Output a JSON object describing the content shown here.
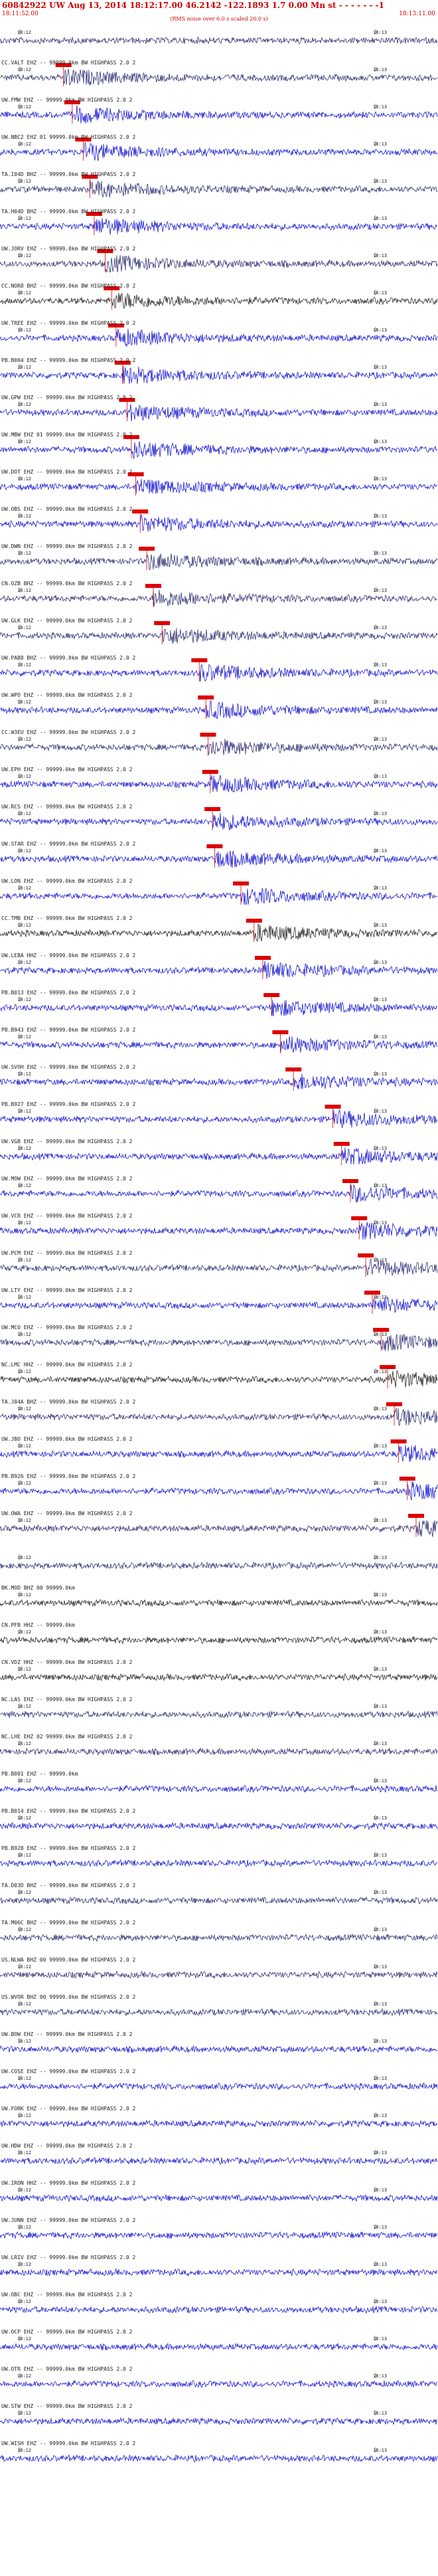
{
  "header": {
    "title": "60842922 UW Aug 13, 2014 18:12:17.00   46.2142  -122.1893  1.7 0.00 Mn st - - - - - - -1",
    "start_time": "18:11:52.00",
    "note": "(RMS noise over 6.0 s scaled 20.0 s)",
    "end_time": "18:13:11.00"
  },
  "colors": {
    "header_red": "#cc0000",
    "pick_red": "#dd0000",
    "trace_blue": "#0000cc",
    "trace_navy": "#1a1a66",
    "trace_black": "#111111",
    "label_dark": "#202020"
  },
  "tick_labels": {
    "left": "18:12",
    "right": "18:13"
  },
  "traces": [
    {
      "label": "",
      "color": "navy",
      "pick": null
    },
    {
      "label": "CC.VALT EHZ -- 99999.0km BW  HIGHPASS  2.0  2",
      "color": "navy",
      "pick": 0.145
    },
    {
      "label": "UW.FMW EHZ -- 99999.0km BW  HIGHPASS  2.0  2",
      "color": "blue",
      "pick": 0.165
    },
    {
      "label": "UW.NBC2 EHZ 01 99999.0km BW  HIGHPASS  2.0  2",
      "color": "blue",
      "pick": 0.19
    },
    {
      "label": "TA.I04D BHZ -- 99999.0km BW  HIGHPASS  2.0  2",
      "color": "navy",
      "pick": 0.205
    },
    {
      "label": "TA.H04D BHZ -- 99999.0km BW  HIGHPASS  2.0  2",
      "color": "blue",
      "pick": 0.215
    },
    {
      "label": "UW.JORV EHZ -- 99999.0km BW  HIGHPASS  2.0  2",
      "color": "navy",
      "pick": 0.24
    },
    {
      "label": "CC.NOR8 BHZ -- 99999.0km BW  HIGHPASS  2.0  2",
      "color": "black",
      "pick": 0.255
    },
    {
      "label": "UW.TREE EHZ -- 99999.0km BW  HIGHPASS  2.0  2",
      "color": "blue",
      "pick": 0.265
    },
    {
      "label": "PB.B004 EHZ -- 99999.0km BW  HIGHPASS  2.0  2",
      "color": "blue",
      "pick": 0.28
    },
    {
      "label": "UW.GPW EHZ -- 99999.0km BW  HIGHPASS  2.0  2",
      "color": "blue",
      "pick": 0.29
    },
    {
      "label": "UW.MBW EHZ 01 99999.0km BW  HIGHPASS  2.0  2",
      "color": "blue",
      "pick": 0.3
    },
    {
      "label": "UW.DOT EHZ -- 99999.0km BW  HIGHPASS  2.0  2",
      "color": "blue",
      "pick": 0.31
    },
    {
      "label": "UW.OBS EHZ -- 99999.0km BW  HIGHPASS  2.0  2",
      "color": "blue",
      "pick": 0.32
    },
    {
      "label": "UW.DWN EHZ -- 99999.0km BW  HIGHPASS  2.0  2",
      "color": "navy",
      "pick": 0.335
    },
    {
      "label": "CN.OZB BHZ -- 99999.0km BW  HIGHPASS  2.0  2",
      "color": "navy",
      "pick": 0.35
    },
    {
      "label": "UW.GLK EHZ -- 99999.0km BW  HIGHPASS  2.0  2",
      "color": "navy",
      "pick": 0.37
    },
    {
      "label": "UW.PAB8 BHZ -- 99999.0km BW  HIGHPASS  2.0  2",
      "color": "blue",
      "pick": 0.455
    },
    {
      "label": "UW.WPO EHZ -- 99999.0km BW  HIGHPASS  2.0  2",
      "color": "blue",
      "pick": 0.47
    },
    {
      "label": "CC.W3EU EHZ -- 99999.0km BW  HIGHPASS  2.0  2",
      "color": "navy",
      "pick": 0.475
    },
    {
      "label": "UW.EPH EHZ -- 99999.0km BW  HIGHPASS  2.0  2",
      "color": "blue",
      "pick": 0.48
    },
    {
      "label": "UW.RCS EHZ -- 99999.0km BW  HIGHPASS  2.0  2",
      "color": "blue",
      "pick": 0.485
    },
    {
      "label": "UW.STAR EHZ -- 99999.0km BW  HIGHPASS  2.0  2",
      "color": "blue",
      "pick": 0.49
    },
    {
      "label": "UW.LON EHZ -- 99999.0km BW  HIGHPASS  2.0  2",
      "color": "blue",
      "pick": 0.55
    },
    {
      "label": "CC.TMB EHZ -- 99999.0km BW  HIGHPASS  2.0  2",
      "color": "black",
      "pick": 0.58
    },
    {
      "label": "UW.LEBA HHZ -- 99999.0km BW  HIGHPASS  2.0  2",
      "color": "blue",
      "pick": 0.6
    },
    {
      "label": "PB.B013 EHZ -- 99999.0km BW  HIGHPASS  2.0  2",
      "color": "blue",
      "pick": 0.62
    },
    {
      "label": "PB.B943 EHZ -- 99999.0km BW  HIGHPASS  2.0  2",
      "color": "blue",
      "pick": 0.64
    },
    {
      "label": "UW.SVOH EHZ -- 99999.0km BW  HIGHPASS  2.0  2",
      "color": "blue",
      "pick": 0.67
    },
    {
      "label": "PB.B927 EHZ -- 99999.0km BW  HIGHPASS  2.0  2",
      "color": "blue",
      "pick": 0.76
    },
    {
      "label": "UW.VGB EHZ -- 99999.0km BW  HIGHPASS  2.0  2",
      "color": "blue",
      "pick": 0.78
    },
    {
      "label": "UW.MOW EHZ -- 99999.0km BW  HIGHPASS  2.0  2",
      "color": "blue",
      "pick": 0.8
    },
    {
      "label": "UW.VCR EHZ -- 99999.0km BW  HIGHPASS  2.0  2",
      "color": "blue",
      "pick": 0.82
    },
    {
      "label": "UW.PCM EHZ -- 99999.0km BW  HIGHPASS  2.0  2",
      "color": "navy",
      "pick": 0.835
    },
    {
      "label": "UW.LTY EHZ -- 99999.0km BW  HIGHPASS  2.0  2",
      "color": "blue",
      "pick": 0.85
    },
    {
      "label": "UW.MCO EHZ -- 99999.0km BW  HIGHPASS  2.0  2",
      "color": "navy",
      "pick": 0.87
    },
    {
      "label": "NC.LMC HHZ -- 99999.0km BW  HIGHPASS  2.0  2",
      "color": "black",
      "pick": 0.885
    },
    {
      "label": "TA.J04A BHZ -- 99999.0km BW  HIGHPASS  2.0  2",
      "color": "navy",
      "pick": 0.9
    },
    {
      "label": "UW.JBO EHZ -- 99999.0km BW  HIGHPASS  2.0  2",
      "color": "blue",
      "pick": 0.91
    },
    {
      "label": "PB.B926 EHZ -- 99999.0km BW  HIGHPASS  2.0  2",
      "color": "blue",
      "pick": 0.93
    },
    {
      "label": "UW.OWA EHZ -- 99999.0km BW  HIGHPASS  2.0  2",
      "color": "navy",
      "pick": 0.95
    },
    {
      "label": "",
      "color": "navy",
      "pick": null
    },
    {
      "label": "BK.MOD BHZ 00 99999.0km",
      "color": "black",
      "pick": null
    },
    {
      "label": "CN.PFB HHZ -- 99999.0km",
      "color": "black",
      "pick": null
    },
    {
      "label": "CN.VDZ HHZ -- 99999.0km BW  HIGHPASS  2.0  2",
      "color": "black",
      "pick": null
    },
    {
      "label": "NC.LAS EHZ -- 99999.0km BW  HIGHPASS  2.0  2",
      "color": "navy",
      "pick": null
    },
    {
      "label": "NC.LHE EHZ 02 99999.0km BW  HIGHPASS  2.0  2",
      "color": "navy",
      "pick": null
    },
    {
      "label": "PB.B001 EHZ -- 99999.0km",
      "color": "blue",
      "pick": null
    },
    {
      "label": "PB.B014 EHZ -- 99999.0km BW  HIGHPASS  2.0  2",
      "color": "blue",
      "pick": null
    },
    {
      "label": "PB.B928 EHZ -- 99999.0km BW  HIGHPASS  2.0  2",
      "color": "blue",
      "pick": null
    },
    {
      "label": "TA.D03D BHZ -- 99999.0km BW  HIGHPASS  2.0  2",
      "color": "navy",
      "pick": null
    },
    {
      "label": "TA.M06C BHZ -- 99999.0km BW  HIGHPASS  2.0  2",
      "color": "navy",
      "pick": null
    },
    {
      "label": "US.NLWA BHZ 00 99999.0km BW  HIGHPASS  2.0  2",
      "color": "navy",
      "pick": null
    },
    {
      "label": "US.WVOR BHZ 00 99999.0km BW  HIGHPASS  2.0  2",
      "color": "navy",
      "pick": null
    },
    {
      "label": "UW.BOW EHZ -- 99999.0km BW  HIGHPASS  2.0  2",
      "color": "blue",
      "pick": null
    },
    {
      "label": "UW.COSE EHZ -- 99999.0km BW  HIGHPASS  2.0  2",
      "color": "blue",
      "pick": null
    },
    {
      "label": "UW.FORK EHZ -- 99999.0km BW  HIGHPASS  2.0  2",
      "color": "blue",
      "pick": null
    },
    {
      "label": "UW.HDW EHZ -- 99999.0km BW  HIGHPASS  2.0  2",
      "color": "blue",
      "pick": null
    },
    {
      "label": "UW.IRON HHZ -- 99999.0km BW  HIGHPASS  2.0  2",
      "color": "blue",
      "pick": null
    },
    {
      "label": "UW.JUNN EHZ -- 99999.0km BW  HIGHPASS  2.0  2",
      "color": "blue",
      "pick": null
    },
    {
      "label": "UW.LRIV EHZ -- 99999.0km BW  HIGHPASS  2.0  2",
      "color": "blue",
      "pick": null
    },
    {
      "label": "UW.OBC EHZ -- 99999.0km BW  HIGHPASS  2.0  2",
      "color": "blue",
      "pick": null
    },
    {
      "label": "UW.OCP EHZ -- 99999.0km BW  HIGHPASS  2.0  2",
      "color": "blue",
      "pick": null
    },
    {
      "label": "UW.OTR EHZ -- 99999.0km BW  HIGHPASS  2.0  2",
      "color": "blue",
      "pick": null
    },
    {
      "label": "UW.STW EHZ -- 99999.0km BW  HIGHPASS  2.0  2",
      "color": "blue",
      "pick": null
    },
    {
      "label": "UW.WISH EHZ -- 99999.0km BW  HIGHPASS  2.0  2",
      "color": "blue",
      "pick": null
    }
  ]
}
